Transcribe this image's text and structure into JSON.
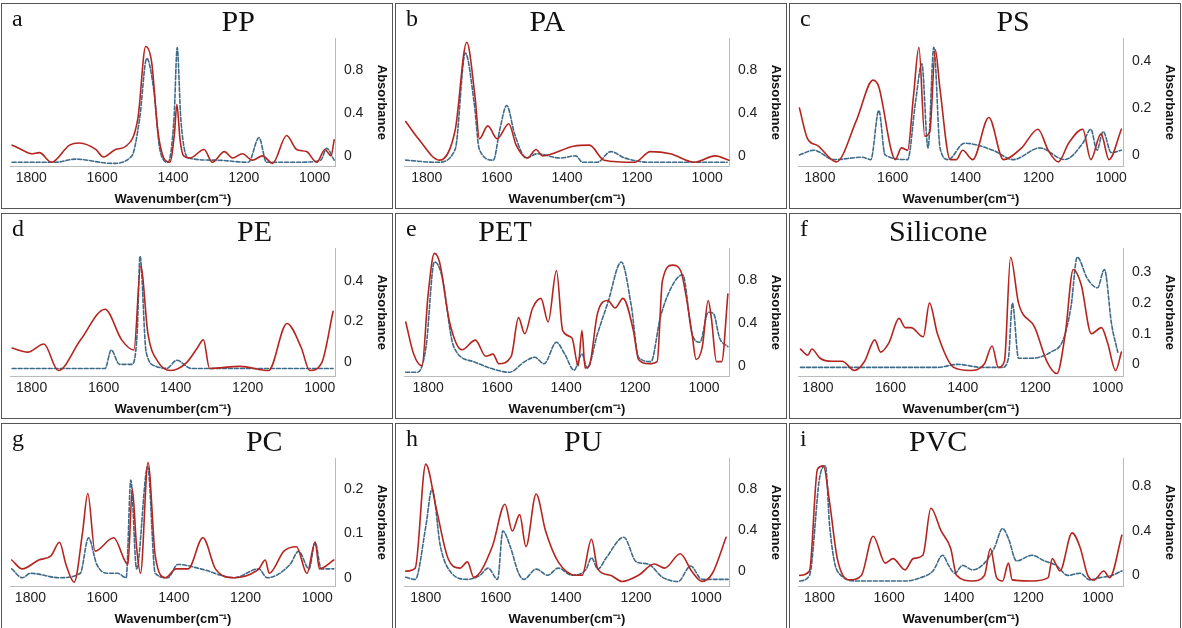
{
  "chart_data": [
    {
      "type": "line",
      "title": "PP",
      "annotations": [
        "a"
      ],
      "xlabel": "Wavenumber(cm⁻¹)",
      "ylabel": "Absorbance",
      "xlim": [
        1860,
        940
      ],
      "xticks": [
        1800,
        1600,
        1400,
        1200,
        1000
      ],
      "ylim": [
        -0.1,
        1.1
      ],
      "yticks": [
        0,
        0.4,
        0.8
      ],
      "marker": "none",
      "series": [
        {
          "color": "#b5251f",
          "line_style": "solid",
          "x": [
            1854,
            1828,
            1800,
            1777,
            1743,
            1692,
            1664,
            1618,
            1596,
            1562,
            1533,
            1499,
            1477,
            1460,
            1443,
            1426,
            1409,
            1396,
            1389,
            1380,
            1370,
            1352,
            1312,
            1289,
            1255,
            1232,
            1204,
            1176,
            1147,
            1119,
            1079,
            1051,
            1023,
            994,
            971,
            954,
            945
          ],
          "values": [
            0.1,
            0.06,
            0.02,
            0.03,
            -0.06,
            0.1,
            0.12,
            0.06,
            -0.01,
            0.06,
            0.09,
            0.35,
            1.02,
            0.87,
            0.24,
            -0.02,
            -0.06,
            0.2,
            0.48,
            0.15,
            0,
            -0.02,
            0.06,
            -0.06,
            0.04,
            -0.02,
            0.02,
            -0.04,
            0,
            -0.07,
            0.19,
            0.06,
            0.04,
            -0.06,
            0.06,
            0,
            0.15
          ]
        },
        {
          "color": "#3e6b8a",
          "line_style": "dashed",
          "x": [
            1854,
            1732,
            1675,
            1573,
            1516,
            1494,
            1474,
            1454,
            1437,
            1414,
            1397,
            1388,
            1378,
            1357,
            1278,
            1187,
            1157,
            1136,
            1051,
            983,
            966,
            945
          ],
          "values": [
            -0.06,
            -0.06,
            -0.03,
            -0.07,
            0,
            0.35,
            0.91,
            0.61,
            0.06,
            -0.06,
            0.35,
            1.01,
            0.35,
            -0.02,
            -0.04,
            -0.06,
            0.17,
            -0.06,
            -0.06,
            -0.04,
            0.07,
            -0.04
          ]
        }
      ]
    },
    {
      "type": "line",
      "title": "PA",
      "annotations": [
        "b"
      ],
      "xlabel": "Wavenumber(cm⁻¹)",
      "ylabel": "Absorbance",
      "xlim": [
        1865,
        935
      ],
      "xticks": [
        1800,
        1600,
        1400,
        1200,
        1000
      ],
      "ylim": [
        -0.1,
        1.1
      ],
      "yticks": [
        0,
        0.4,
        0.8
      ],
      "marker": "none",
      "series": [
        {
          "color": "#b5251f",
          "line_style": "solid",
          "x": [
            1860,
            1824,
            1764,
            1719,
            1686,
            1662,
            1650,
            1626,
            1599,
            1566,
            1545,
            1513,
            1488,
            1470,
            1381,
            1336,
            1294,
            1207,
            1162,
            1105,
            1036,
            977,
            938
          ],
          "values": [
            0.32,
            0.16,
            -0.04,
            0.24,
            1.06,
            0.54,
            0.16,
            0.28,
            0.16,
            0.3,
            0.1,
            -0.02,
            0.06,
            0,
            0.09,
            0.1,
            -0.04,
            -0.06,
            0.04,
            0.02,
            -0.06,
            0,
            -0.04
          ]
        },
        {
          "color": "#3e6b8a",
          "line_style": "dashed",
          "x": [
            1860,
            1770,
            1719,
            1690,
            1665,
            1650,
            1610,
            1592,
            1572,
            1549,
            1516,
            1485,
            1420,
            1375,
            1355,
            1314,
            1275,
            1235,
            1161,
            943
          ],
          "values": [
            -0.04,
            -0.06,
            0.06,
            0.96,
            0.5,
            0.06,
            -0.04,
            0.24,
            0.47,
            0.2,
            -0.02,
            0.02,
            -0.02,
            0,
            -0.06,
            -0.06,
            0.04,
            -0.02,
            -0.06,
            -0.06
          ]
        }
      ]
    },
    {
      "type": "line",
      "title": "PS",
      "annotations": [
        "c"
      ],
      "xlabel": "Wavenumber(cm⁻¹)",
      "ylabel": "Absorbance",
      "xlim": [
        1860,
        965
      ],
      "xticks": [
        1800,
        1600,
        1400,
        1200,
        1000
      ],
      "ylim": [
        -0.05,
        0.5
      ],
      "yticks": [
        0,
        0.2,
        0.4
      ],
      "marker": "none",
      "series": [
        {
          "color": "#b5251f",
          "line_style": "solid",
          "x": [
            1856,
            1834,
            1806,
            1755,
            1699,
            1654,
            1638,
            1604,
            1593,
            1576,
            1559,
            1543,
            1528,
            1512,
            1498,
            1483,
            1470,
            1442,
            1425,
            1408,
            1380,
            1336,
            1296,
            1246,
            1201,
            1173,
            1145,
            1117,
            1078,
            1056,
            1028,
            1006,
            972
          ],
          "values": [
            0.2,
            0.07,
            0.04,
            -0.03,
            0.15,
            0.32,
            0.29,
            0.02,
            -0.02,
            0.03,
            0.02,
            0.25,
            0.46,
            0.08,
            0.1,
            0.45,
            0.28,
            -0.02,
            -0.02,
            0.02,
            -0.02,
            0.16,
            -0.02,
            0.03,
            0.11,
            0.02,
            -0.03,
            0.05,
            0.11,
            -0.02,
            0.09,
            -0.02,
            0.11
          ]
        },
        {
          "color": "#3e6b8a",
          "line_style": "dashed",
          "x": [
            1856,
            1817,
            1761,
            1683,
            1660,
            1638,
            1621,
            1559,
            1537,
            1520,
            1503,
            1487,
            1470,
            1448,
            1403,
            1325,
            1269,
            1196,
            1128,
            1078,
            1056,
            1039,
            1022,
            1000,
            972
          ],
          "values": [
            0,
            0.02,
            -0.02,
            -0.01,
            -0.02,
            0.19,
            0,
            -0.02,
            0.23,
            0.39,
            0.03,
            0.46,
            0.03,
            -0.02,
            0.05,
            0.02,
            -0.02,
            0.03,
            -0.02,
            0.05,
            0.11,
            0.02,
            0.1,
            0.01,
            0.02
          ]
        }
      ]
    },
    {
      "type": "line",
      "title": "PE",
      "annotations": [
        "d"
      ],
      "xlabel": "Wavenumber(cm⁻¹)",
      "ylabel": "Absorbance",
      "xlim": [
        1860,
        955
      ],
      "xticks": [
        1800,
        1600,
        1400,
        1200,
        1000
      ],
      "ylim": [
        -0.07,
        0.56
      ],
      "yticks": [
        0,
        0.2,
        0.4
      ],
      "marker": "none",
      "series": [
        {
          "color": "#b5251f",
          "line_style": "solid",
          "x": [
            1854,
            1811,
            1766,
            1726,
            1664,
            1596,
            1550,
            1516,
            1497,
            1477,
            1448,
            1414,
            1369,
            1340,
            1323,
            1306,
            1221,
            1142,
            1091,
            1051,
            1028,
            994,
            963
          ],
          "values": [
            0.07,
            0.05,
            0.09,
            -0.04,
            0.11,
            0.26,
            0.11,
            0.06,
            0.47,
            0.14,
            0,
            -0.04,
            0,
            0.07,
            0.11,
            -0.03,
            -0.02,
            -0.04,
            0.19,
            0.07,
            -0.04,
            0,
            0.25
          ]
        },
        {
          "color": "#3e6b8a",
          "line_style": "dashed",
          "x": [
            1854,
            1596,
            1579,
            1556,
            1522,
            1507,
            1499,
            1482,
            1454,
            1425,
            1397,
            1357,
            963
          ],
          "values": [
            -0.03,
            -0.03,
            0.06,
            -0.01,
            -0.01,
            0.14,
            0.52,
            0.05,
            -0.02,
            -0.03,
            0.01,
            -0.03,
            -0.03
          ]
        }
      ]
    },
    {
      "type": "line",
      "title": "PET",
      "annotations": [
        "e"
      ],
      "xlabel": "Wavenumber(cm⁻¹)",
      "ylabel": "Absorbance",
      "xlim": [
        1870,
        925
      ],
      "xticks": [
        1800,
        1600,
        1400,
        1200,
        1000
      ],
      "ylim": [
        -0.1,
        1.1
      ],
      "yticks": [
        0,
        0.4,
        0.8
      ],
      "marker": "none",
      "series": [
        {
          "color": "#b5251f",
          "line_style": "solid",
          "x": [
            1865,
            1842,
            1818,
            1800,
            1782,
            1767,
            1738,
            1702,
            1663,
            1633,
            1612,
            1595,
            1559,
            1538,
            1520,
            1497,
            1473,
            1452,
            1428,
            1410,
            1383,
            1365,
            1354,
            1345,
            1333,
            1309,
            1279,
            1258,
            1235,
            1205,
            1190,
            1160,
            1136,
            1121,
            1092,
            1068,
            1053,
            1035,
            1023,
            1005,
            988,
            979,
            964,
            949,
            931
          ],
          "values": [
            0.41,
            0.11,
            0,
            0.67,
            1.05,
            0.97,
            0.41,
            0.15,
            0.24,
            0.09,
            0.11,
            0.02,
            0.09,
            0.45,
            0.3,
            0.54,
            0.63,
            0.41,
            0.89,
            0.33,
            0.26,
            0,
            0.33,
            -0.02,
            0,
            0.49,
            0.61,
            0.54,
            0.63,
            0.33,
            0.06,
            0.02,
            0.04,
            0.79,
            0.94,
            0.89,
            0.67,
            0.3,
            0.06,
            0.18,
            0.61,
            0.45,
            0.04,
            0.04,
            0.67
          ]
        },
        {
          "color": "#3e6b8a",
          "line_style": "dashed",
          "x": [
            1865,
            1830,
            1806,
            1782,
            1761,
            1726,
            1669,
            1621,
            1565,
            1520,
            1491,
            1464,
            1428,
            1404,
            1377,
            1354,
            1339,
            1309,
            1279,
            1240,
            1211,
            1190,
            1154,
            1127,
            1092,
            1062,
            1035,
            1012,
            988,
            973,
            955,
            931
          ],
          "values": [
            -0.06,
            -0.06,
            0.18,
            0.97,
            0.85,
            0.18,
            0.04,
            -0.02,
            -0.06,
            0.04,
            0.08,
            0.02,
            0.22,
            0.11,
            -0.04,
            0.11,
            -0.02,
            0.3,
            0.59,
            0.97,
            0.56,
            0.08,
            0.04,
            0.45,
            0.75,
            0.85,
            0.3,
            0.22,
            0.5,
            0.49,
            0.26,
            0.18
          ]
        }
      ]
    },
    {
      "type": "line",
      "title": "Silicone",
      "annotations": [
        "f"
      ],
      "xlabel": "Wavenumber(cm⁻¹)",
      "ylabel": "Absorbance",
      "xlim": [
        1855,
        955
      ],
      "xticks": [
        1800,
        1600,
        1400,
        1200,
        1000
      ],
      "ylim": [
        -0.04,
        0.38
      ],
      "yticks": [
        0,
        0.1,
        0.2,
        0.3
      ],
      "marker": "none",
      "series": [
        {
          "color": "#b5251f",
          "line_style": "solid",
          "x": [
            1848,
            1828,
            1817,
            1794,
            1761,
            1733,
            1699,
            1671,
            1643,
            1627,
            1604,
            1576,
            1559,
            1543,
            1509,
            1492,
            1470,
            1425,
            1380,
            1341,
            1319,
            1302,
            1285,
            1268,
            1246,
            1201,
            1168,
            1140,
            1117,
            1095,
            1073,
            1045,
            1017,
            1000,
            978,
            962
          ],
          "values": [
            0.05,
            0.03,
            0.05,
            0.02,
            0.01,
            0.01,
            -0.02,
            0.01,
            0.08,
            0.04,
            0.07,
            0.15,
            0.12,
            0.12,
            0.09,
            0.2,
            0.1,
            -0.01,
            -0.02,
            0,
            0.06,
            -0.01,
            0.01,
            0.35,
            0.2,
            0.12,
            0.01,
            -0.03,
            0.1,
            0.31,
            0.26,
            0.1,
            0.12,
            0.07,
            -0.02,
            0.04
          ]
        },
        {
          "color": "#3e6b8a",
          "line_style": "dashed",
          "x": [
            1848,
            1470,
            1414,
            1347,
            1291,
            1274,
            1263,
            1246,
            1213,
            1157,
            1123,
            1101,
            1084,
            1056,
            1028,
            1009,
            989,
            972
          ],
          "values": [
            -0.01,
            -0.01,
            0,
            -0.01,
            -0.01,
            0.02,
            0.2,
            0.02,
            0.02,
            0.04,
            0.08,
            0.19,
            0.35,
            0.28,
            0.25,
            0.31,
            0.13,
            0.04
          ]
        }
      ]
    },
    {
      "type": "line",
      "title": "PC",
      "annotations": [
        "g"
      ],
      "xlabel": "Wavenumber(cm⁻¹)",
      "ylabel": "Absorbance",
      "xlim": [
        1857,
        948
      ],
      "xticks": [
        1800,
        1600,
        1400,
        1200,
        1000
      ],
      "ylim": [
        -0.02,
        0.27
      ],
      "yticks": [
        0,
        0.1,
        0.2
      ],
      "marker": "none",
      "series": [
        {
          "color": "#b5251f",
          "line_style": "solid",
          "x": [
            1852,
            1823,
            1777,
            1742,
            1719,
            1701,
            1678,
            1655,
            1640,
            1620,
            1568,
            1528,
            1516,
            1504,
            1493,
            1472,
            1452,
            1423,
            1394,
            1360,
            1319,
            1284,
            1232,
            1163,
            1145,
            1134,
            1093,
            1058,
            1029,
            1006,
            994,
            954
          ],
          "values": [
            0.04,
            0.02,
            0.04,
            0.05,
            0.08,
            0.03,
            -0.01,
            0.1,
            0.19,
            0.06,
            0.09,
            0.03,
            0.2,
            0.07,
            0.01,
            0.26,
            0.05,
            0,
            0.02,
            0.02,
            0.09,
            0.02,
            0,
            0.02,
            0.04,
            0.01,
            0.06,
            0.07,
            0.01,
            0.08,
            0.02,
            0.04
          ]
        },
        {
          "color": "#3e6b8a",
          "line_style": "dashed",
          "x": [
            1852,
            1823,
            1800,
            1719,
            1661,
            1638,
            1615,
            1586,
            1557,
            1533,
            1520,
            1504,
            1473,
            1452,
            1417,
            1389,
            1325,
            1232,
            1163,
            1140,
            1076,
            1052,
            1023,
            1006,
            989,
            954
          ],
          "values": [
            0.02,
            0,
            0.01,
            0,
            0.01,
            0.09,
            0.03,
            0.01,
            0.01,
            0,
            0.22,
            0.02,
            0.25,
            0.01,
            0,
            0.03,
            0.02,
            0,
            0.02,
            0,
            0.03,
            0.06,
            0.02,
            0.08,
            0.02,
            0.02
          ]
        }
      ]
    },
    {
      "type": "line",
      "title": "PU",
      "annotations": [
        "h"
      ],
      "xlabel": "Wavenumber(cm⁻¹)",
      "ylabel": "Absorbance",
      "xlim": [
        1862,
        932
      ],
      "xticks": [
        1800,
        1600,
        1400,
        1200,
        1000
      ],
      "ylim": [
        -0.15,
        1.1
      ],
      "yticks": [
        0,
        0.4,
        0.8
      ],
      "marker": "none",
      "series": [
        {
          "color": "#b5251f",
          "line_style": "solid",
          "x": [
            1857,
            1830,
            1800,
            1770,
            1737,
            1702,
            1681,
            1663,
            1610,
            1574,
            1553,
            1532,
            1514,
            1485,
            1458,
            1422,
            1371,
            1354,
            1327,
            1309,
            1273,
            1240,
            1193,
            1148,
            1118,
            1074,
            1041,
            1012,
            982,
            943
          ],
          "values": [
            0,
            0.03,
            1.04,
            0.61,
            0.13,
            0.03,
            0.09,
            -0.06,
            0.24,
            0.65,
            0.39,
            0.55,
            0.24,
            0.75,
            0.39,
            0.09,
            -0.04,
            -0.04,
            0.31,
            0.02,
            -0.04,
            -0.1,
            -0.04,
            0.07,
            0.03,
            0.17,
            0,
            -0.1,
            -0.02,
            0.33
          ]
        },
        {
          "color": "#3e6b8a",
          "line_style": "dashed",
          "x": [
            1857,
            1830,
            1800,
            1782,
            1758,
            1726,
            1681,
            1645,
            1622,
            1595,
            1580,
            1559,
            1535,
            1520,
            1485,
            1452,
            1422,
            1383,
            1342,
            1327,
            1309,
            1285,
            1235,
            1199,
            1166,
            1124,
            1080,
            1044,
            1012,
            937
          ],
          "values": [
            -0.06,
            -0.08,
            0.43,
            0.8,
            0.24,
            -0.02,
            -0.08,
            -0.04,
            0.03,
            -0.08,
            0.39,
            0.24,
            -0.02,
            -0.08,
            0.02,
            -0.04,
            0.03,
            -0.04,
            0.02,
            0.13,
            0.02,
            0.13,
            0.33,
            0.09,
            0.07,
            -0.06,
            -0.1,
            0.05,
            -0.08,
            -0.08
          ]
        }
      ]
    },
    {
      "type": "line",
      "title": "PVC",
      "annotations": [
        "i"
      ],
      "xlabel": "Wavenumber(cm⁻¹)",
      "ylabel": "Absorbance",
      "xlim": [
        1862,
        925
      ],
      "xticks": [
        1800,
        1600,
        1400,
        1200,
        1000
      ],
      "ylim": [
        -0.1,
        1.05
      ],
      "yticks": [
        0,
        0.4,
        0.8
      ],
      "marker": "none",
      "series": [
        {
          "color": "#b5251f",
          "line_style": "solid",
          "x": [
            1857,
            1829,
            1806,
            1789,
            1771,
            1749,
            1714,
            1680,
            1646,
            1611,
            1589,
            1554,
            1531,
            1503,
            1480,
            1451,
            1423,
            1406,
            1360,
            1326,
            1309,
            1291,
            1274,
            1257,
            1246,
            1189,
            1143,
            1131,
            1109,
            1074,
            1051,
            1029,
            1011,
            983,
            966,
            931
          ],
          "values": [
            0,
            0.04,
            0.95,
            0.98,
            0.65,
            0.15,
            -0.04,
            0,
            0.35,
            0.11,
            0.15,
            0.05,
            0.15,
            0.18,
            0.6,
            0.4,
            0.24,
            0,
            -0.05,
            0,
            0.24,
            -0.02,
            -0.05,
            0.11,
            -0.04,
            -0.05,
            -0.02,
            0.15,
            0.04,
            0.38,
            0.25,
            0,
            -0.04,
            0.04,
            -0.02,
            0.36
          ]
        },
        {
          "color": "#3e6b8a",
          "line_style": "dashed",
          "x": [
            1857,
            1829,
            1800,
            1783,
            1771,
            1749,
            1691,
            1554,
            1509,
            1474,
            1446,
            1429,
            1411,
            1389,
            1360,
            1326,
            1297,
            1274,
            1257,
            1234,
            1189,
            1154,
            1120,
            1086,
            1051,
            1023,
            994,
            960,
            931
          ],
          "values": [
            -0.05,
            0,
            0.87,
            0.98,
            0.44,
            0.04,
            -0.05,
            -0.05,
            -0.02,
            0.04,
            0.18,
            0.09,
            0.02,
            0.09,
            0.05,
            0.11,
            0.25,
            0.42,
            0.33,
            0.13,
            0.18,
            0.13,
            0.09,
            0,
            0.02,
            -0.04,
            -0.02,
            0,
            0.04
          ]
        }
      ]
    }
  ]
}
